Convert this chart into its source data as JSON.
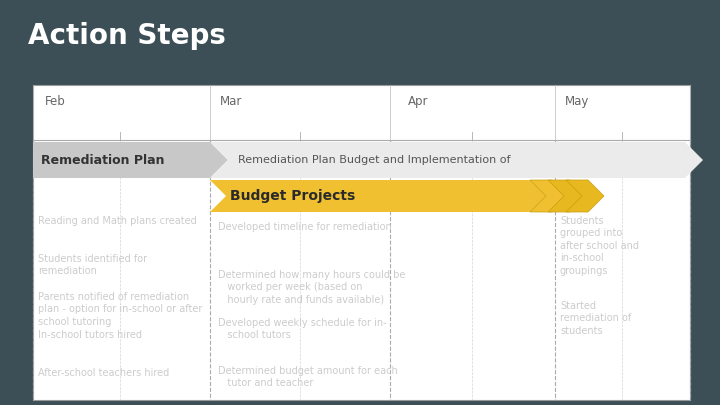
{
  "title": "Action Steps",
  "bg_color": "#3c4f57",
  "white_bg": "#ffffff",
  "table_bg": "#3c4f57",
  "month_labels": [
    "Feb",
    "Mar",
    "Apr",
    "May"
  ],
  "gray_arrow_label": "Remediation Plan",
  "white_arrow_label": "Remediation Plan Budget and Implementation of",
  "yellow_arrow_label": "Budget Projects",
  "gray_arrow_color": "#c8c8c8",
  "white_arrow_color": "#ebebeb",
  "yellow_arrow_color": "#f0c030",
  "yellow_chevron_color": "#e8b820",
  "left_text_color": "#cccccc",
  "mid_text_color": "#cccccc",
  "right_text_color": "#cccccc",
  "left_bullets": [
    "Reading and Math plans created",
    "Students identified for\nremediation",
    "Parents notified of remediation\nplan - option for in-school or after\nschool tutoring",
    "In-school tutors hired",
    "After-school teachers hired"
  ],
  "mid_bullets": [
    "Developed timeline for remediation",
    "Determined how many hours could be\n   worked per week (based on\n   hourly rate and funds available)",
    "Developed weekly schedule for in-\n   school tutors",
    "Determined budget amount for each\n   tutor and teacher"
  ],
  "right_bullets": [
    "Students\ngrouped into\nafter school and\nin-school\ngroupings",
    "Started\nremediation of\nstudents"
  ],
  "title_size": 20,
  "month_size": 8.5,
  "bullet_size": 7,
  "arrow_label_size": 9,
  "arrow_text_size": 8
}
